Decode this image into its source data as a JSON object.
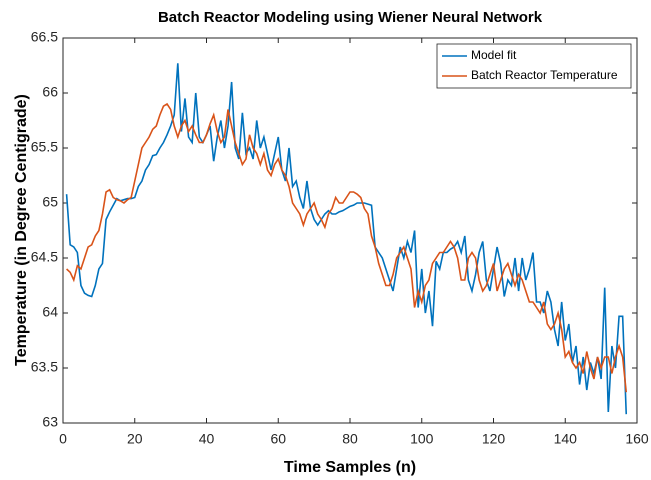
{
  "chart_data": {
    "type": "line",
    "title": "Batch Reactor Modeling using Wiener Neural Network",
    "x_label": "Time Samples (n)",
    "y_label": "Temperature (in Degree Centigrade)",
    "x": [
      1,
      2,
      3,
      4,
      5,
      6,
      7,
      8,
      9,
      10,
      11,
      12,
      13,
      14,
      15,
      16,
      17,
      18,
      19,
      20,
      21,
      22,
      23,
      24,
      25,
      26,
      27,
      28,
      29,
      30,
      31,
      32,
      33,
      34,
      35,
      36,
      37,
      38,
      39,
      40,
      41,
      42,
      43,
      44,
      45,
      46,
      47,
      48,
      49,
      50,
      51,
      52,
      53,
      54,
      55,
      56,
      57,
      58,
      59,
      60,
      61,
      62,
      63,
      64,
      65,
      66,
      67,
      68,
      69,
      70,
      71,
      72,
      73,
      74,
      75,
      76,
      77,
      78,
      79,
      80,
      81,
      82,
      83,
      84,
      85,
      86,
      87,
      88,
      89,
      90,
      91,
      92,
      93,
      94,
      95,
      96,
      97,
      98,
      99,
      100,
      101,
      102,
      103,
      104,
      105,
      106,
      107,
      108,
      109,
      110,
      111,
      112,
      113,
      114,
      115,
      116,
      117,
      118,
      119,
      120,
      121,
      122,
      123,
      124,
      125,
      126,
      127,
      128,
      129,
      130,
      131,
      132,
      133,
      134,
      135,
      136,
      137,
      138,
      139,
      140,
      141,
      142,
      143,
      144,
      145,
      146,
      147,
      148,
      149,
      150,
      151,
      152,
      153,
      154,
      155,
      156,
      157
    ],
    "series": [
      {
        "name": "Model fit",
        "color": "#0072bd",
        "values": [
          65.08,
          64.62,
          64.6,
          64.55,
          64.25,
          64.18,
          64.16,
          64.15,
          64.25,
          64.4,
          64.45,
          64.85,
          64.92,
          64.98,
          65.04,
          65.02,
          65.03,
          65.04,
          65.04,
          65.05,
          65.15,
          65.2,
          65.3,
          65.35,
          65.43,
          65.44,
          65.5,
          65.55,
          65.62,
          65.7,
          65.8,
          66.27,
          65.65,
          65.95,
          65.6,
          65.55,
          66.0,
          65.6,
          65.55,
          65.62,
          65.7,
          65.38,
          65.6,
          65.75,
          65.5,
          65.7,
          66.1,
          65.5,
          65.4,
          65.82,
          65.45,
          65.5,
          65.4,
          65.75,
          65.5,
          65.6,
          65.45,
          65.3,
          65.45,
          65.6,
          65.3,
          65.2,
          65.5,
          65.15,
          65.2,
          65.05,
          64.95,
          65.2,
          64.95,
          64.85,
          64.8,
          64.85,
          64.9,
          64.93,
          64.9,
          64.9,
          64.92,
          64.93,
          64.95,
          64.97,
          64.98,
          65.0,
          65.0,
          65.0,
          64.99,
          64.98,
          64.6,
          64.55,
          64.5,
          64.4,
          64.3,
          64.2,
          64.4,
          64.6,
          64.5,
          64.65,
          64.55,
          64.75,
          64.05,
          64.4,
          64.0,
          64.2,
          63.88,
          64.47,
          64.4,
          64.55,
          64.55,
          64.58,
          64.6,
          64.65,
          64.55,
          64.7,
          64.3,
          64.2,
          64.35,
          64.55,
          64.65,
          64.3,
          64.2,
          64.4,
          64.6,
          64.45,
          64.15,
          64.3,
          64.25,
          64.5,
          64.2,
          64.5,
          64.3,
          64.4,
          64.55,
          64.1,
          64.1,
          64.0,
          64.2,
          64.1,
          63.85,
          63.7,
          64.1,
          63.75,
          63.9,
          63.55,
          63.7,
          63.35,
          63.6,
          63.3,
          63.55,
          63.45,
          63.6,
          63.4,
          64.23,
          63.1,
          63.7,
          63.5,
          63.97,
          63.97,
          63.08
        ]
      },
      {
        "name": "Batch Reactor Temperature",
        "color": "#d95319",
        "values": [
          64.4,
          64.37,
          64.3,
          64.43,
          64.4,
          64.5,
          64.6,
          64.62,
          64.7,
          64.75,
          64.9,
          65.1,
          65.12,
          65.05,
          65.03,
          65.02,
          65.0,
          65.03,
          65.05,
          65.2,
          65.35,
          65.5,
          65.55,
          65.6,
          65.67,
          65.7,
          65.8,
          65.88,
          65.9,
          65.85,
          65.7,
          65.6,
          65.7,
          65.75,
          65.65,
          65.7,
          65.62,
          65.55,
          65.55,
          65.62,
          65.72,
          65.8,
          65.65,
          65.55,
          65.6,
          65.85,
          65.7,
          65.55,
          65.45,
          65.35,
          65.4,
          65.62,
          65.5,
          65.45,
          65.35,
          65.45,
          65.3,
          65.25,
          65.35,
          65.4,
          65.3,
          65.25,
          65.15,
          65.0,
          64.95,
          64.9,
          64.8,
          64.9,
          64.95,
          65.0,
          64.9,
          64.85,
          64.78,
          64.9,
          64.95,
          65.05,
          65.0,
          65.0,
          65.05,
          65.1,
          65.1,
          65.08,
          65.05,
          64.95,
          64.9,
          64.7,
          64.6,
          64.45,
          64.35,
          64.25,
          64.25,
          64.35,
          64.5,
          64.55,
          64.6,
          64.5,
          64.4,
          64.05,
          64.2,
          64.1,
          64.25,
          64.3,
          64.45,
          64.5,
          64.55,
          64.55,
          64.6,
          64.65,
          64.6,
          64.5,
          64.3,
          64.3,
          64.5,
          64.55,
          64.5,
          64.3,
          64.2,
          64.25,
          64.35,
          64.45,
          64.2,
          64.3,
          64.4,
          64.45,
          64.35,
          64.25,
          64.35,
          64.3,
          64.2,
          64.1,
          64.1,
          64.05,
          64.0,
          64.1,
          63.9,
          63.85,
          63.9,
          64.0,
          63.85,
          63.6,
          63.65,
          63.55,
          63.5,
          63.55,
          63.45,
          63.65,
          63.5,
          63.4,
          63.6,
          63.5,
          63.6,
          63.6,
          63.45,
          63.6,
          63.7,
          63.6,
          63.28
        ]
      }
    ],
    "xlim": [
      0,
      160
    ],
    "xticks": [
      0,
      20,
      40,
      60,
      80,
      100,
      120,
      140,
      160
    ],
    "ylim": [
      63,
      66.5
    ],
    "yticks": [
      63,
      63.5,
      64,
      64.5,
      65,
      65.5,
      66,
      66.5
    ],
    "grid": false,
    "legend": "top-right"
  }
}
